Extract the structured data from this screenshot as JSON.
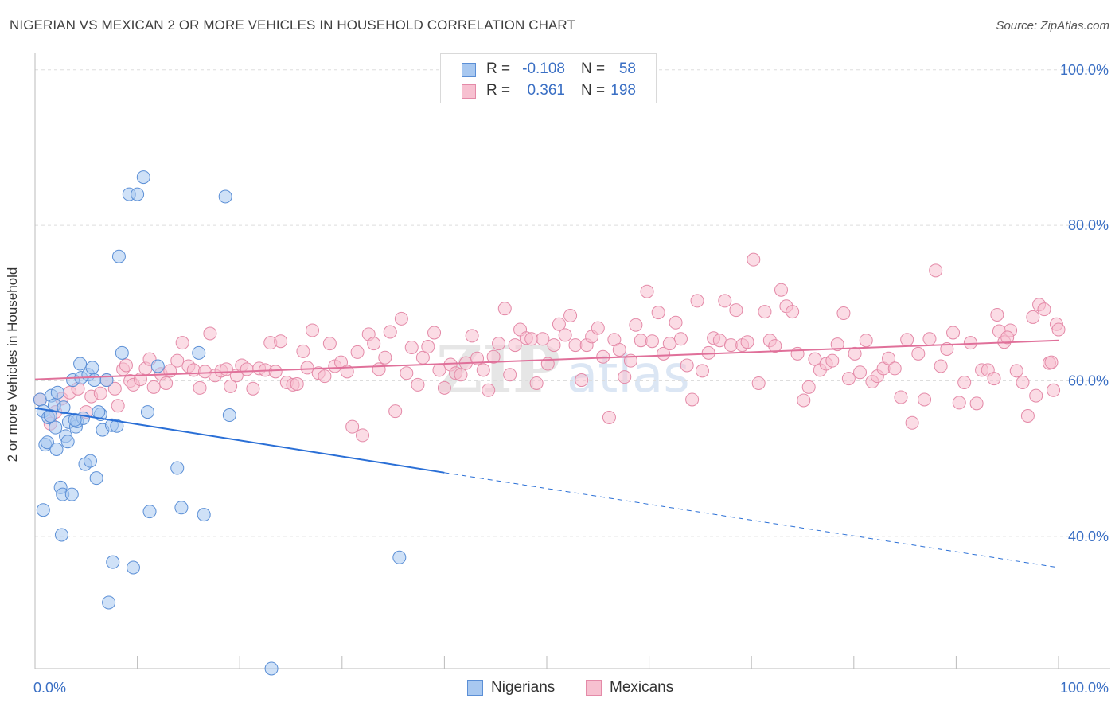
{
  "title": "NIGERIAN VS MEXICAN 2 OR MORE VEHICLES IN HOUSEHOLD CORRELATION CHART",
  "source": "Source: ZipAtlas.com",
  "watermark": {
    "part1": "ZIP",
    "part2": "atlas"
  },
  "legend_top": {
    "rows": [
      {
        "r_label": "R =",
        "r_value": "-0.108",
        "n_label": "N =",
        "n_value": "58",
        "swatch_color": "#a8c8f0",
        "swatch_border": "#5b8fd6"
      },
      {
        "r_label": "R =",
        "r_value": "0.361",
        "n_label": "N =",
        "n_value": "198",
        "swatch_color": "#f7c0d0",
        "swatch_border": "#e48aa8"
      }
    ],
    "value_color": "#3a6fc4"
  },
  "bottom_legend": [
    {
      "label": "Nigerians",
      "color": "#a8c8f0",
      "border": "#5b8fd6"
    },
    {
      "label": "Mexicans",
      "color": "#f7c0d0",
      "border": "#e48aa8"
    }
  ],
  "chart_data": {
    "type": "scatter",
    "title": "NIGERIAN VS MEXICAN 2 OR MORE VEHICLES IN HOUSEHOLD CORRELATION CHART",
    "xlabel": "",
    "ylabel": "2 or more Vehicles in Household",
    "xlim": [
      0,
      100
    ],
    "ylim": [
      23,
      101
    ],
    "x_tick_labels": [
      {
        "value": 0,
        "label": "0.0%"
      },
      {
        "value": 100,
        "label": "100.0%"
      }
    ],
    "y_tick_labels": [
      {
        "value": 100,
        "label": "100.0%"
      },
      {
        "value": 80,
        "label": "80.0%"
      },
      {
        "value": 60,
        "label": "60.0%"
      },
      {
        "value": 40,
        "label": "40.0%"
      }
    ],
    "y_gridlines": [
      100,
      80,
      60,
      40
    ],
    "x_minor_ticks": [
      0,
      10,
      20,
      30,
      40,
      50,
      60,
      70,
      80,
      90,
      100
    ],
    "grid": true,
    "legend_position": "top-center",
    "series": [
      {
        "name": "Nigerians",
        "color": "#a8c8f0",
        "stroke": "#5b8fd6",
        "line_color": "#2a6fd6",
        "trend": {
          "x0": 0,
          "y0": 56.5,
          "x1": 40,
          "y1": 48.2,
          "dash_to_x": 100,
          "dash_to_y": 36.0
        },
        "points": [
          [
            0.5,
            57.6
          ],
          [
            0.8,
            56.1
          ],
          [
            0.8,
            43.4
          ],
          [
            1.0,
            51.8
          ],
          [
            1.2,
            52.1
          ],
          [
            1.3,
            55.3
          ],
          [
            1.6,
            58.1
          ],
          [
            1.9,
            56.9
          ],
          [
            2.1,
            51.2
          ],
          [
            2.2,
            58.5
          ],
          [
            2.5,
            46.3
          ],
          [
            2.6,
            40.2
          ],
          [
            2.7,
            45.4
          ],
          [
            2.8,
            56.6
          ],
          [
            3.0,
            52.9
          ],
          [
            3.2,
            52.2
          ],
          [
            3.3,
            54.7
          ],
          [
            3.6,
            45.4
          ],
          [
            3.7,
            60.1
          ],
          [
            4.0,
            54.1
          ],
          [
            4.1,
            54.8
          ],
          [
            4.4,
            62.2
          ],
          [
            4.5,
            60.4
          ],
          [
            4.7,
            55.2
          ],
          [
            4.9,
            49.3
          ],
          [
            5.2,
            60.8
          ],
          [
            5.4,
            49.7
          ],
          [
            5.6,
            61.7
          ],
          [
            5.8,
            60.1
          ],
          [
            6.0,
            47.5
          ],
          [
            6.4,
            55.7
          ],
          [
            6.6,
            53.7
          ],
          [
            7.0,
            60.1
          ],
          [
            7.2,
            31.5
          ],
          [
            7.5,
            54.3
          ],
          [
            7.6,
            36.7
          ],
          [
            8.0,
            54.2
          ],
          [
            8.2,
            76.0
          ],
          [
            8.5,
            63.6
          ],
          [
            9.2,
            84.0
          ],
          [
            9.6,
            36.0
          ],
          [
            10.0,
            84.0
          ],
          [
            10.6,
            86.2
          ],
          [
            11.0,
            56.0
          ],
          [
            11.2,
            43.2
          ],
          [
            12.0,
            61.9
          ],
          [
            13.9,
            48.8
          ],
          [
            14.3,
            43.7
          ],
          [
            16.0,
            63.6
          ],
          [
            16.5,
            42.8
          ],
          [
            18.6,
            83.7
          ],
          [
            19.0,
            55.6
          ],
          [
            23.1,
            23.0
          ],
          [
            35.6,
            37.3
          ],
          [
            2.0,
            54.0
          ],
          [
            1.5,
            55.5
          ],
          [
            3.9,
            55.0
          ],
          [
            6.2,
            56.0
          ]
        ]
      },
      {
        "name": "Mexicans",
        "color": "#f7c0d0",
        "stroke": "#e48aa8",
        "line_color": "#e0709a",
        "trend": {
          "x0": 0,
          "y0": 60.2,
          "x1": 100,
          "y1": 65.2
        },
        "points": [
          [
            0.5,
            57.6
          ],
          [
            1.5,
            54.5
          ],
          [
            2.0,
            56.0
          ],
          [
            2.6,
            57.7
          ],
          [
            3.4,
            58.5
          ],
          [
            4.2,
            59.0
          ],
          [
            5.0,
            56.0
          ],
          [
            5.5,
            58.0
          ],
          [
            6.4,
            58.4
          ],
          [
            7.0,
            60.1
          ],
          [
            7.8,
            59.0
          ],
          [
            8.1,
            56.8
          ],
          [
            8.6,
            61.5
          ],
          [
            8.9,
            62.0
          ],
          [
            9.3,
            60.0
          ],
          [
            9.6,
            59.5
          ],
          [
            10.3,
            60.2
          ],
          [
            10.8,
            61.6
          ],
          [
            11.2,
            62.8
          ],
          [
            11.6,
            59.2
          ],
          [
            12.3,
            60.9
          ],
          [
            12.8,
            59.7
          ],
          [
            13.2,
            61.3
          ],
          [
            13.9,
            62.6
          ],
          [
            14.4,
            64.9
          ],
          [
            15.0,
            61.9
          ],
          [
            15.5,
            61.4
          ],
          [
            16.1,
            59.1
          ],
          [
            16.6,
            61.2
          ],
          [
            17.1,
            66.1
          ],
          [
            17.6,
            60.7
          ],
          [
            18.2,
            61.3
          ],
          [
            18.7,
            61.5
          ],
          [
            19.1,
            59.3
          ],
          [
            19.7,
            60.7
          ],
          [
            20.2,
            62.0
          ],
          [
            20.7,
            61.5
          ],
          [
            21.3,
            59.0
          ],
          [
            21.9,
            61.6
          ],
          [
            22.5,
            61.4
          ],
          [
            23.0,
            64.9
          ],
          [
            23.5,
            61.2
          ],
          [
            24.0,
            65.1
          ],
          [
            24.6,
            59.8
          ],
          [
            25.2,
            59.5
          ],
          [
            25.6,
            59.6
          ],
          [
            26.2,
            63.8
          ],
          [
            26.6,
            61.7
          ],
          [
            27.1,
            66.5
          ],
          [
            27.7,
            61.0
          ],
          [
            28.3,
            60.6
          ],
          [
            28.8,
            64.8
          ],
          [
            29.3,
            61.9
          ],
          [
            29.9,
            62.4
          ],
          [
            30.5,
            61.2
          ],
          [
            31.0,
            54.1
          ],
          [
            31.5,
            63.7
          ],
          [
            32.0,
            53.0
          ],
          [
            32.6,
            66.0
          ],
          [
            33.1,
            64.8
          ],
          [
            33.6,
            61.5
          ],
          [
            34.2,
            63.0
          ],
          [
            34.7,
            66.3
          ],
          [
            35.2,
            56.1
          ],
          [
            35.8,
            68.0
          ],
          [
            36.3,
            61.0
          ],
          [
            36.8,
            64.3
          ],
          [
            37.4,
            59.5
          ],
          [
            37.9,
            63.0
          ],
          [
            38.4,
            64.4
          ],
          [
            39.0,
            66.2
          ],
          [
            39.5,
            61.4
          ],
          [
            40.0,
            59.1
          ],
          [
            40.6,
            62.1
          ],
          [
            41.1,
            61.0
          ],
          [
            41.6,
            60.8
          ],
          [
            42.1,
            62.3
          ],
          [
            42.7,
            65.8
          ],
          [
            43.2,
            62.9
          ],
          [
            43.8,
            61.4
          ],
          [
            44.3,
            58.8
          ],
          [
            44.8,
            63.1
          ],
          [
            45.3,
            64.8
          ],
          [
            45.9,
            69.3
          ],
          [
            46.4,
            60.8
          ],
          [
            46.9,
            64.6
          ],
          [
            47.4,
            66.6
          ],
          [
            48.0,
            65.5
          ],
          [
            48.5,
            65.4
          ],
          [
            49.0,
            59.7
          ],
          [
            49.6,
            65.4
          ],
          [
            50.1,
            62.2
          ],
          [
            50.7,
            64.6
          ],
          [
            51.2,
            67.3
          ],
          [
            51.8,
            65.9
          ],
          [
            52.3,
            68.4
          ],
          [
            52.8,
            64.6
          ],
          [
            53.4,
            60.1
          ],
          [
            53.9,
            64.6
          ],
          [
            54.4,
            65.7
          ],
          [
            55.0,
            66.8
          ],
          [
            55.5,
            63.1
          ],
          [
            56.1,
            55.3
          ],
          [
            56.6,
            65.3
          ],
          [
            57.1,
            64.0
          ],
          [
            57.6,
            60.5
          ],
          [
            58.2,
            62.6
          ],
          [
            58.7,
            67.2
          ],
          [
            59.2,
            65.2
          ],
          [
            59.8,
            71.5
          ],
          [
            60.3,
            65.1
          ],
          [
            60.9,
            68.8
          ],
          [
            61.4,
            63.5
          ],
          [
            62.0,
            64.8
          ],
          [
            62.6,
            67.5
          ],
          [
            63.1,
            65.4
          ],
          [
            63.7,
            62.0
          ],
          [
            64.2,
            57.6
          ],
          [
            64.7,
            70.3
          ],
          [
            65.2,
            61.3
          ],
          [
            65.8,
            63.6
          ],
          [
            66.3,
            65.5
          ],
          [
            66.9,
            65.2
          ],
          [
            67.4,
            70.3
          ],
          [
            68.0,
            64.6
          ],
          [
            68.5,
            69.1
          ],
          [
            69.1,
            64.6
          ],
          [
            69.6,
            65.0
          ],
          [
            70.2,
            75.6
          ],
          [
            70.7,
            59.7
          ],
          [
            71.3,
            68.9
          ],
          [
            71.8,
            65.2
          ],
          [
            72.3,
            64.5
          ],
          [
            72.9,
            71.7
          ],
          [
            73.4,
            69.6
          ],
          [
            74.0,
            68.9
          ],
          [
            74.5,
            63.5
          ],
          [
            75.1,
            57.5
          ],
          [
            75.6,
            59.2
          ],
          [
            76.2,
            62.8
          ],
          [
            76.7,
            61.4
          ],
          [
            77.3,
            62.2
          ],
          [
            77.9,
            62.6
          ],
          [
            78.4,
            64.7
          ],
          [
            79.0,
            68.7
          ],
          [
            79.5,
            60.3
          ],
          [
            80.1,
            63.5
          ],
          [
            80.6,
            61.1
          ],
          [
            81.2,
            65.2
          ],
          [
            81.8,
            59.9
          ],
          [
            82.3,
            60.6
          ],
          [
            82.9,
            61.6
          ],
          [
            83.4,
            62.9
          ],
          [
            84.0,
            61.6
          ],
          [
            84.6,
            57.9
          ],
          [
            85.2,
            65.3
          ],
          [
            85.7,
            54.6
          ],
          [
            86.3,
            63.5
          ],
          [
            86.9,
            57.6
          ],
          [
            87.4,
            65.4
          ],
          [
            88.0,
            74.2
          ],
          [
            88.5,
            61.9
          ],
          [
            89.1,
            64.1
          ],
          [
            89.7,
            66.2
          ],
          [
            90.3,
            57.2
          ],
          [
            90.8,
            59.8
          ],
          [
            91.4,
            64.9
          ],
          [
            92.0,
            57.1
          ],
          [
            92.5,
            61.4
          ],
          [
            93.1,
            61.4
          ],
          [
            93.7,
            60.3
          ],
          [
            94.2,
            66.4
          ],
          [
            94.7,
            65.0
          ],
          [
            95.3,
            66.5
          ],
          [
            95.9,
            61.3
          ],
          [
            96.5,
            59.8
          ],
          [
            97.0,
            55.5
          ],
          [
            97.5,
            68.2
          ],
          [
            98.1,
            69.8
          ],
          [
            98.6,
            69.2
          ],
          [
            99.1,
            62.3
          ],
          [
            99.5,
            58.8
          ],
          [
            99.8,
            67.3
          ],
          [
            100.0,
            66.6
          ],
          [
            97.8,
            58.1
          ],
          [
            95.0,
            65.6
          ],
          [
            94.0,
            68.5
          ],
          [
            99.3,
            62.4
          ]
        ]
      }
    ]
  }
}
